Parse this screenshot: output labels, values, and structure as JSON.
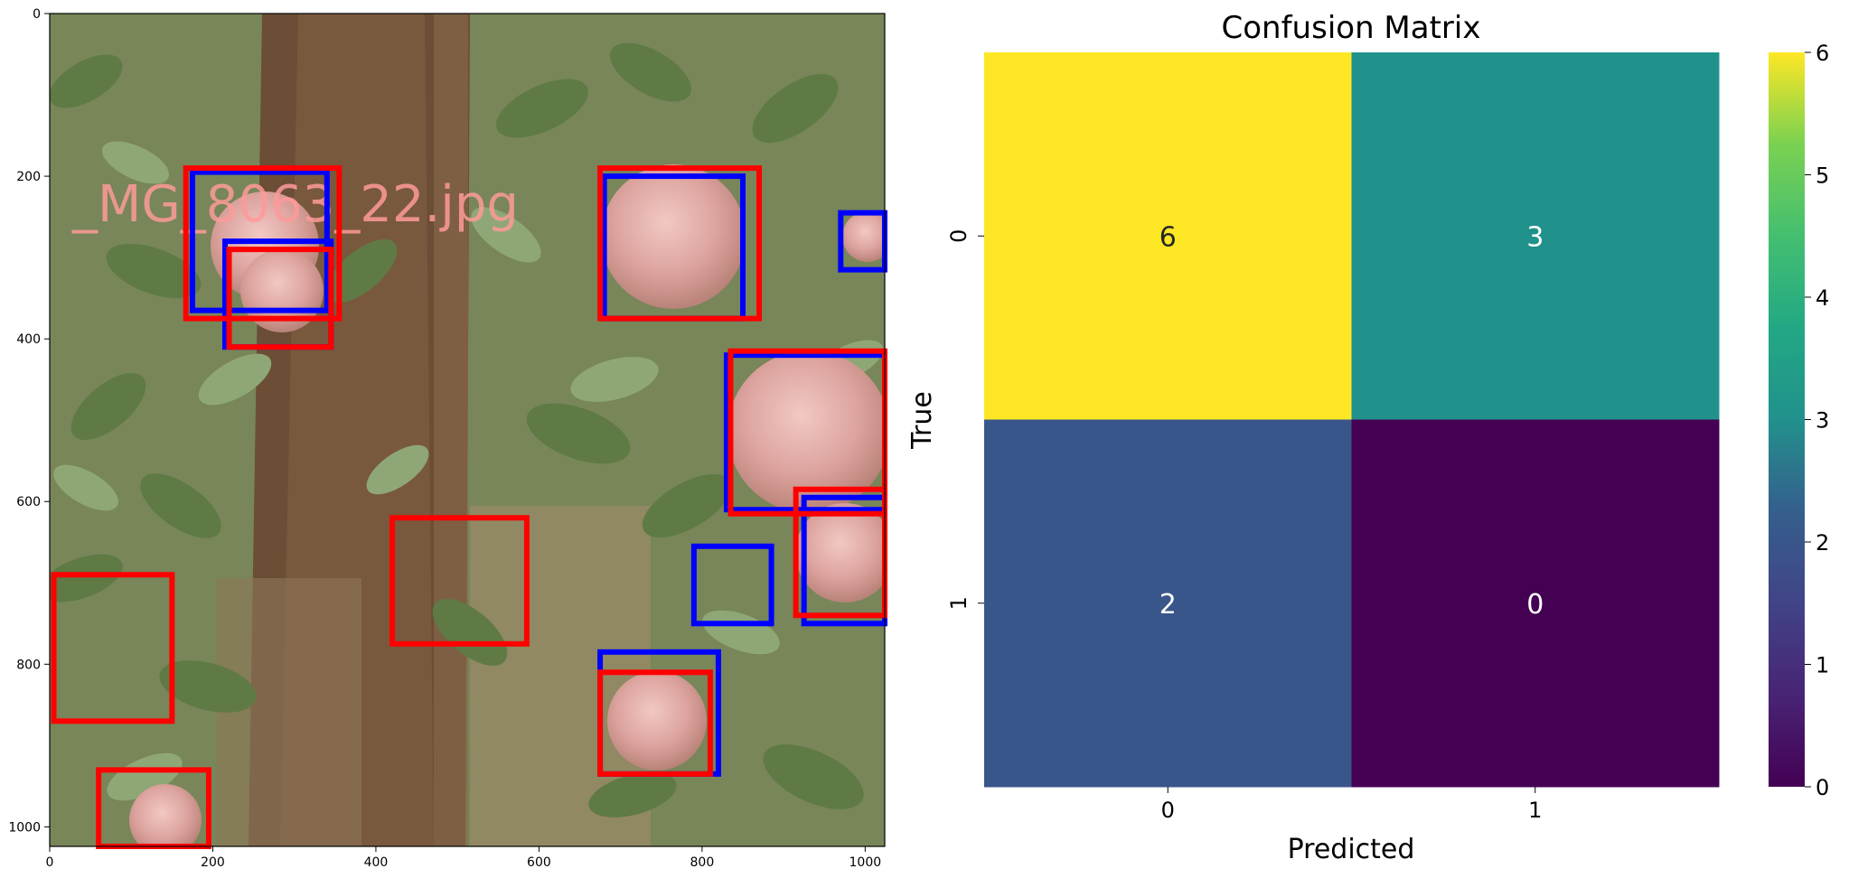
{
  "image_panel": {
    "watermark_text": "_MG_8063_22.jpg",
    "x_ticks": [
      0,
      200,
      400,
      600,
      800,
      1000
    ],
    "y_ticks": [
      0,
      200,
      400,
      600,
      800,
      1000
    ],
    "extent": {
      "x": [
        0,
        1024
      ],
      "y": [
        1024,
        0
      ]
    },
    "box_colors": {
      "blue": "#0000ff",
      "red": "#ff0000"
    },
    "blue_boxes": [
      [
        175,
        195,
        340,
        365
      ],
      [
        215,
        280,
        345,
        410
      ],
      [
        680,
        200,
        850,
        375
      ],
      [
        970,
        245,
        1024,
        315
      ],
      [
        830,
        420,
        1024,
        610
      ],
      [
        925,
        595,
        1024,
        750
      ],
      [
        790,
        655,
        885,
        750
      ],
      [
        675,
        785,
        820,
        935
      ]
    ],
    "red_boxes": [
      [
        167,
        190,
        355,
        375
      ],
      [
        220,
        290,
        345,
        410
      ],
      [
        675,
        190,
        870,
        375
      ],
      [
        835,
        415,
        1024,
        615
      ],
      [
        915,
        585,
        1024,
        740
      ],
      [
        420,
        620,
        585,
        775
      ],
      [
        5,
        690,
        150,
        870
      ],
      [
        675,
        810,
        810,
        935
      ],
      [
        60,
        930,
        195,
        1024
      ]
    ]
  },
  "chart_data": {
    "type": "heatmap",
    "title": "Confusion Matrix",
    "xlabel": "Predicted",
    "ylabel": "True",
    "x_categories": [
      "0",
      "1"
    ],
    "y_categories": [
      "0",
      "1"
    ],
    "values": [
      [
        6,
        3
      ],
      [
        2,
        0
      ]
    ],
    "colormap": "viridis",
    "colorbar": {
      "min": 0,
      "max": 6,
      "ticks": [
        0,
        1,
        2,
        3,
        4,
        5,
        6
      ]
    },
    "annotation_colors": {
      "dark": "#262626",
      "light": "#ffffff"
    }
  }
}
